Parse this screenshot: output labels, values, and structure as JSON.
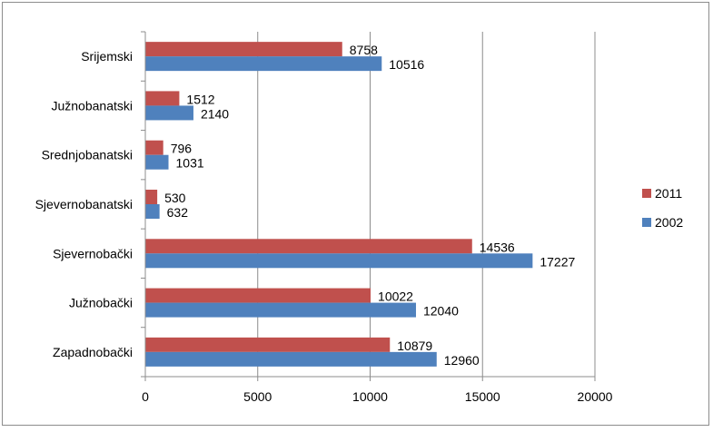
{
  "chart_data": {
    "type": "bar",
    "orientation": "horizontal",
    "categories": [
      "Srijemski",
      "Južnobanatski",
      "Srednjobanatski",
      "Sjevernobanatski",
      "Sjevernobački",
      "Južnobački",
      "Zapadnobački"
    ],
    "series": [
      {
        "name": "2011",
        "color": "#c0504d",
        "values": [
          8758,
          1512,
          796,
          530,
          14536,
          10022,
          10879
        ]
      },
      {
        "name": "2002",
        "color": "#4f81bd",
        "values": [
          10516,
          2140,
          1031,
          632,
          17227,
          12040,
          12960
        ]
      }
    ],
    "xlim": [
      0,
      20000
    ],
    "xticks": [
      0,
      5000,
      10000,
      15000,
      20000
    ],
    "grid": true,
    "legend_position": "right",
    "data_labels": true
  }
}
